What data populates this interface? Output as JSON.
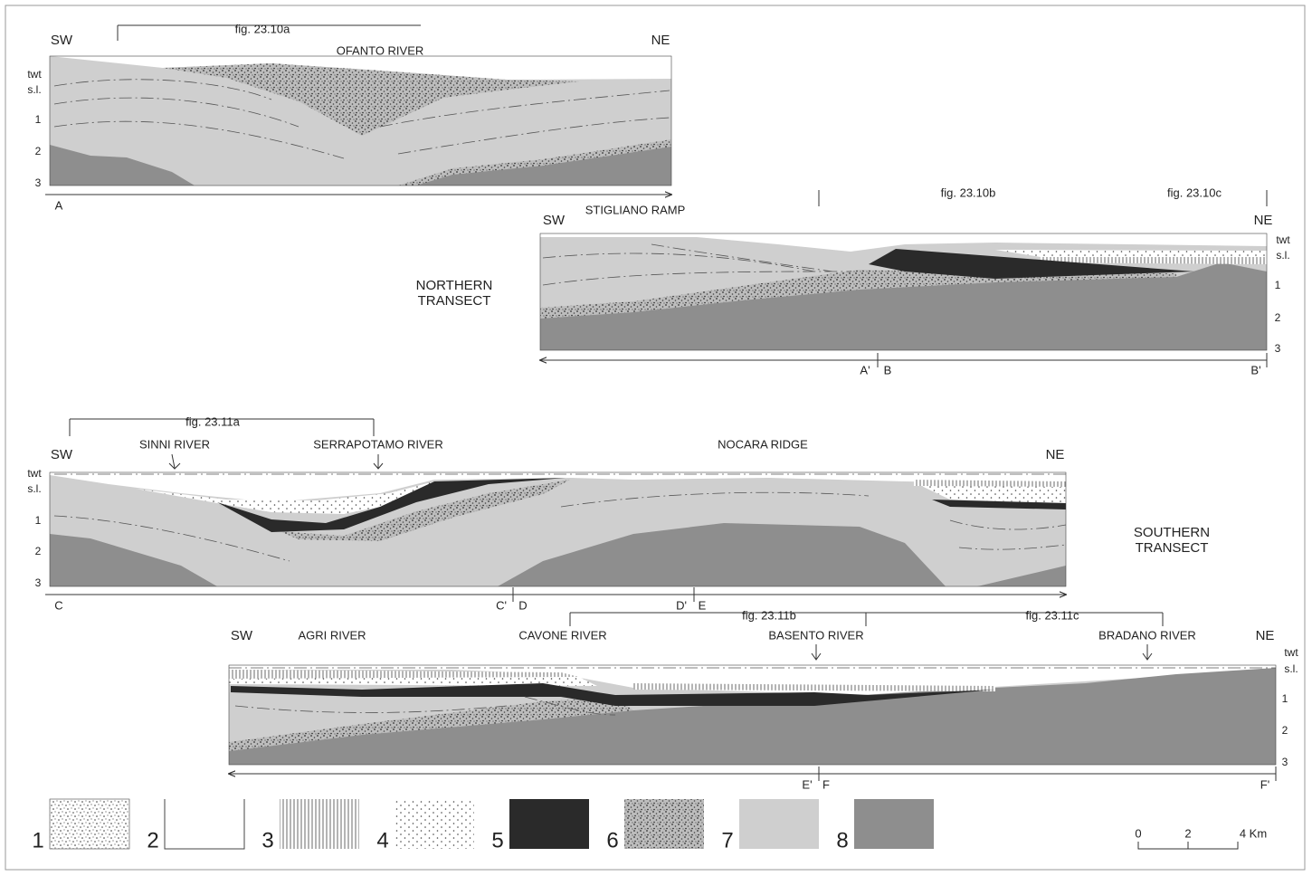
{
  "sections": [
    {
      "fig": [
        "fig. 23.10a"
      ],
      "sw": "SW",
      "ne": "NE",
      "features": [
        "OFANTO RIVER"
      ],
      "axis": [
        "twt",
        "s.l.",
        "1",
        "2",
        "3"
      ],
      "points": [
        "A"
      ]
    },
    {
      "fig": [
        "fig. 23.10b",
        "fig. 23.10c"
      ],
      "sw": "SW",
      "ne": "NE",
      "features": [
        "STIGLIANO RAMP"
      ],
      "axis": [
        "twt",
        "s.l.",
        "1",
        "2",
        "3"
      ],
      "points": [
        "A'",
        "B",
        "B'"
      ]
    },
    {
      "fig": [
        "fig. 23.11a"
      ],
      "sw": "SW",
      "ne": "NE",
      "features": [
        "SINNI RIVER",
        "SERRAPOTAMO RIVER",
        "NOCARA RIDGE"
      ],
      "axis": [
        "twt",
        "s.l.",
        "1",
        "2",
        "3"
      ],
      "points": [
        "C",
        "C'",
        "D",
        "D'",
        "E"
      ]
    },
    {
      "fig": [
        "fig. 23.11b",
        "fig. 23.11c"
      ],
      "sw": "SW",
      "ne": "NE",
      "features": [
        "AGRI RIVER",
        "CAVONE RIVER",
        "BASENTO RIVER",
        "BRADANO RIVER"
      ],
      "axis": [
        "twt",
        "s.l.",
        "1",
        "2",
        "3"
      ],
      "points": [
        "E'",
        "F",
        "F'"
      ]
    }
  ],
  "transects": [
    [
      "NORTHERN",
      "TRANSECT"
    ],
    [
      "SOUTHERN",
      "TRANSECT"
    ]
  ],
  "legend": [
    "1",
    "2",
    "3",
    "4",
    "5",
    "6",
    "7",
    "8"
  ],
  "scale": [
    "0",
    "2",
    "4 Km"
  ]
}
